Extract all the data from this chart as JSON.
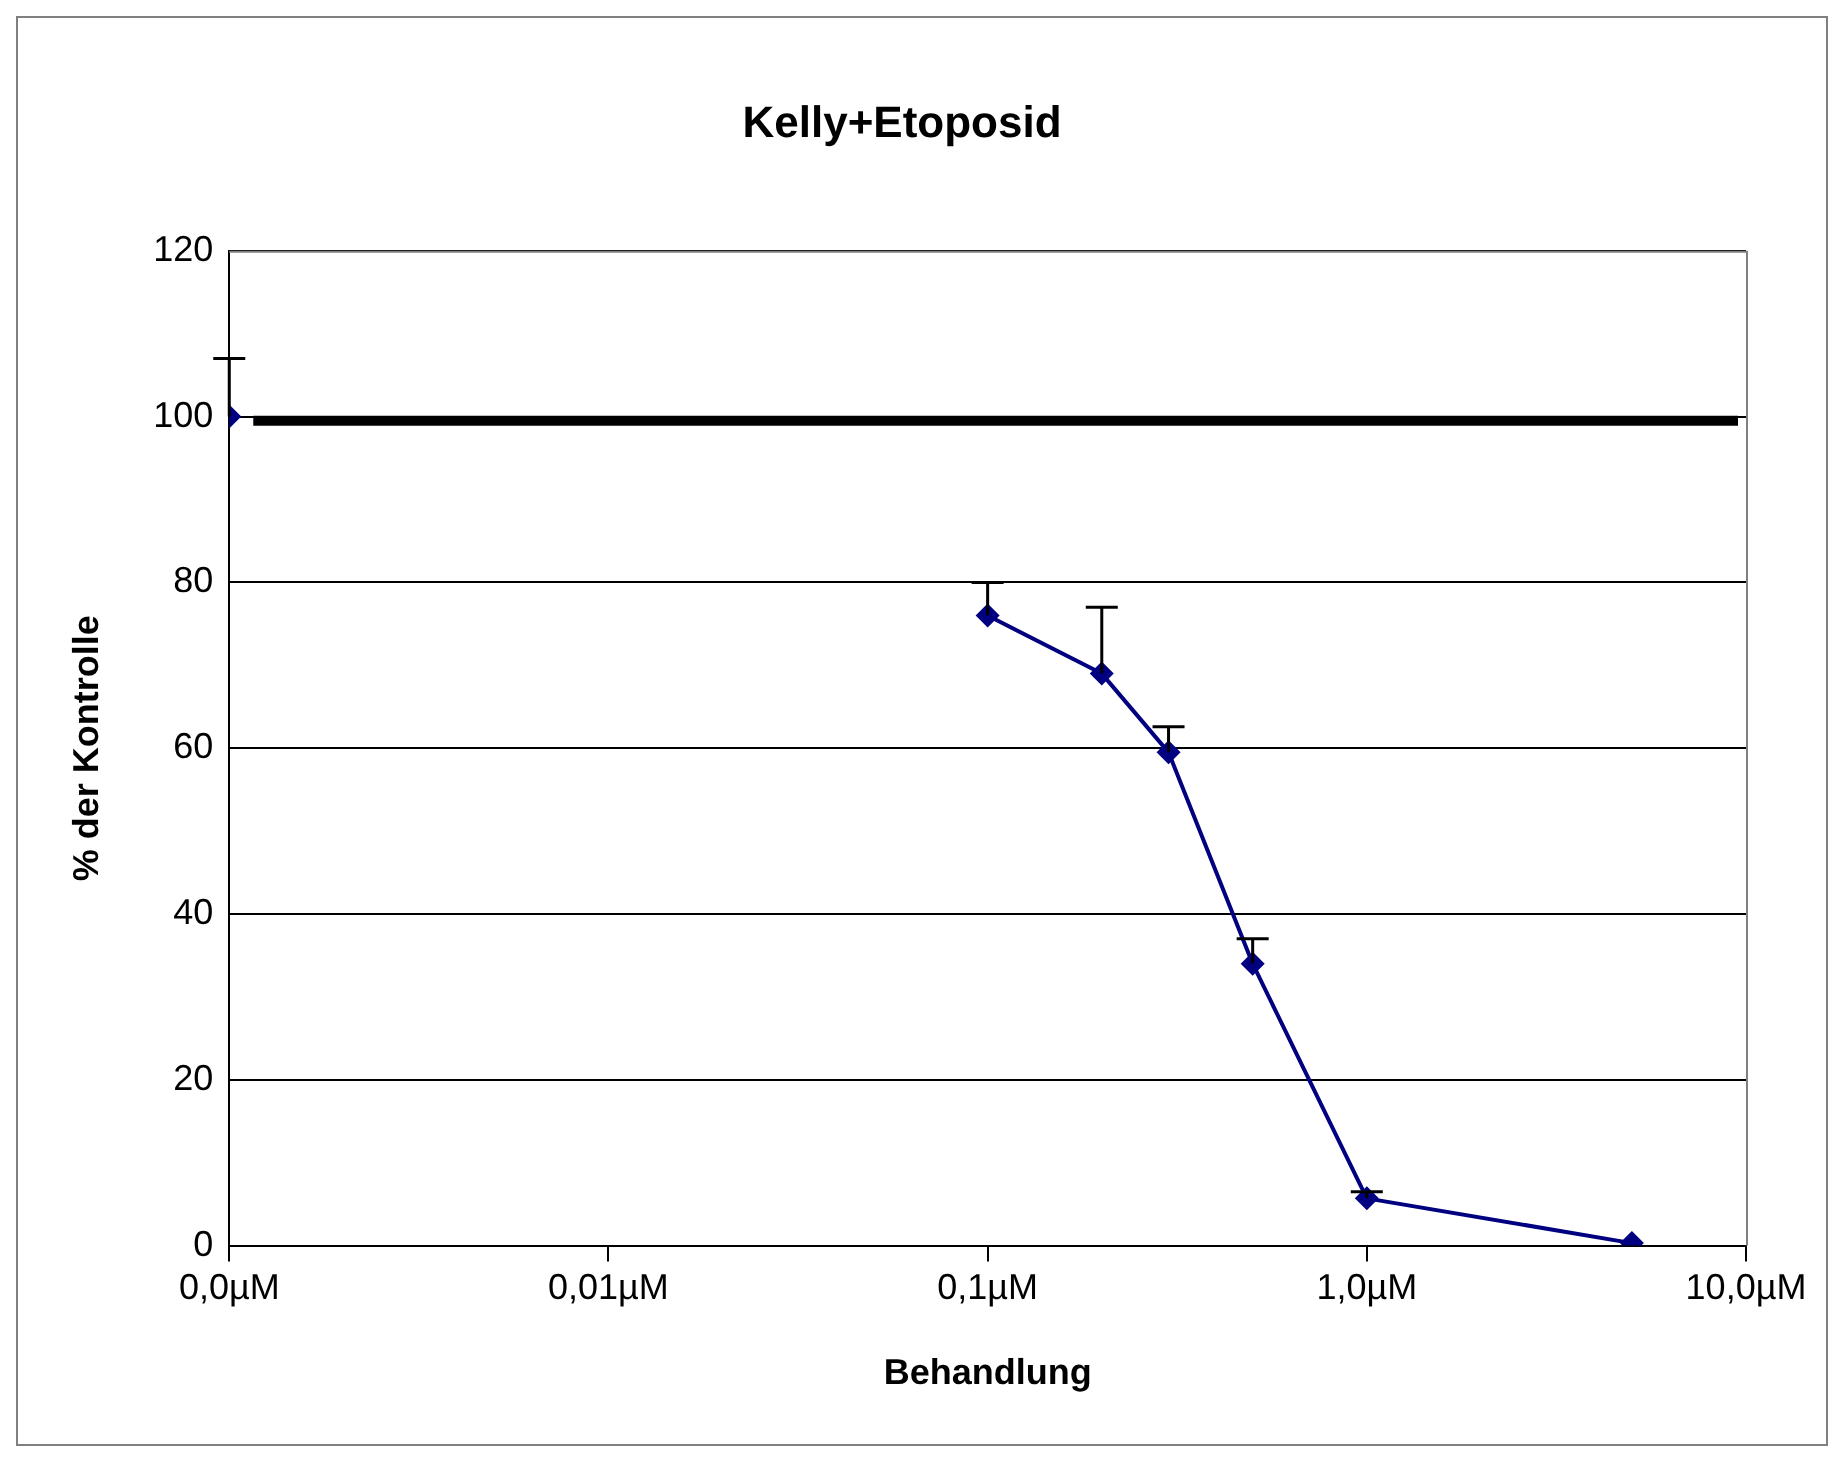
{
  "chart_data": {
    "type": "line",
    "title": "Kelly+Etoposid",
    "xlabel": "Behandlung",
    "ylabel": "% der Kontrolle",
    "log": "x",
    "xlim": [
      0.001,
      10
    ],
    "xticks": [
      {
        "value": 0.001,
        "label": "0,0µM"
      },
      {
        "value": 0.01,
        "label": "0,01µM"
      },
      {
        "value": 0.1,
        "label": "0,1µM"
      },
      {
        "value": 1,
        "label": "1,0µM"
      },
      {
        "value": 10,
        "label": "10,0µM"
      }
    ],
    "ylim": [
      0,
      120
    ],
    "yticks": [
      0,
      20,
      40,
      60,
      80,
      100,
      120
    ],
    "grid": "y",
    "legend": false,
    "marker": "diamond",
    "line_style": "solid",
    "series": [
      {
        "type": "scatter",
        "color": "#000080",
        "x": [
          0.001
        ],
        "values": [
          100
        ],
        "errors": [
          [
            100,
            107
          ]
        ]
      },
      {
        "type": "line",
        "color": "#000080",
        "x": [
          0.1,
          0.2,
          0.3,
          0.5,
          1,
          5
        ],
        "values": [
          76,
          69,
          59.5,
          34,
          5.7,
          0.3
        ],
        "errors": [
          [
            76,
            80
          ],
          [
            69,
            77
          ],
          [
            59.5,
            62.6
          ],
          [
            34,
            37
          ],
          [
            5.7,
            6.5
          ],
          null
        ]
      }
    ],
    "ref_lines": [
      {
        "axis": "y",
        "value": 99.5,
        "color": "#000000"
      }
    ]
  }
}
